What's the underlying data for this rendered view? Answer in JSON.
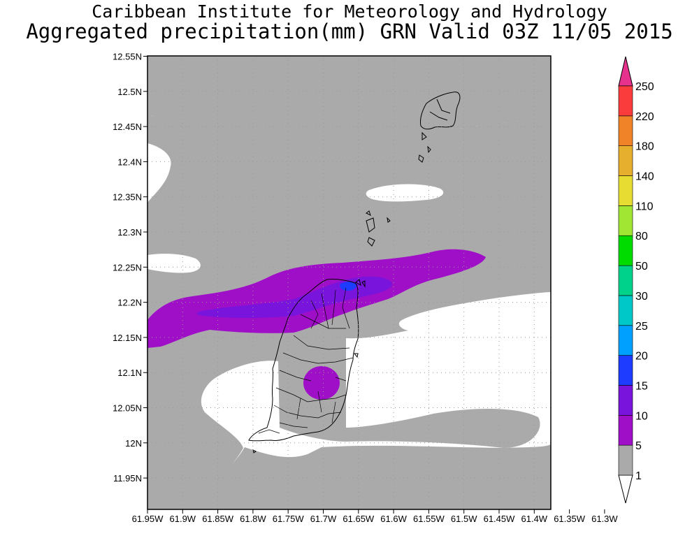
{
  "title": {
    "line1": "Caribbean Institute for Meteorology and Hydrology",
    "line2": "Aggregated precipitation(mm) GRN Valid 03Z 11/05 2015"
  },
  "map": {
    "region": "Grenada and southern Grenadines",
    "lat_ticks": [
      "12.55N",
      "12.5N",
      "12.45N",
      "12.4N",
      "12.35N",
      "12.3N",
      "12.25N",
      "12.2N",
      "12.15N",
      "12.1N",
      "12.05N",
      "12N",
      "11.95N"
    ],
    "lon_ticks": [
      "61.95W",
      "61.9W",
      "61.85W",
      "61.8W",
      "61.75W",
      "61.7W",
      "61.65W",
      "61.6W",
      "61.55W",
      "61.5W",
      "61.45W",
      "61.4W",
      "61.35W",
      "61.3W"
    ],
    "grid": "dotted",
    "fields": [
      {
        "level": "1-5 mm",
        "color": "#aaaaaa"
      },
      {
        "level": "5-10 mm",
        "color": "#a00fc8"
      },
      {
        "level": "10-15 mm",
        "color": "#7814dc"
      },
      {
        "level": "15-20 mm",
        "color": "#1e3cff"
      }
    ]
  },
  "colorbar": {
    "unit": "mm",
    "levels": [
      "1",
      "5",
      "10",
      "15",
      "20",
      "25",
      "30",
      "50",
      "80",
      "110",
      "140",
      "180",
      "220",
      "250"
    ],
    "colors": [
      "#ffffff",
      "#aaaaaa",
      "#a00fc8",
      "#7814dc",
      "#1e3cff",
      "#00a0ff",
      "#00c8c8",
      "#00d28c",
      "#00dc00",
      "#a0e632",
      "#e6dc32",
      "#e6af2d",
      "#f08228",
      "#fa3c3c",
      "#e6328c"
    ]
  }
}
